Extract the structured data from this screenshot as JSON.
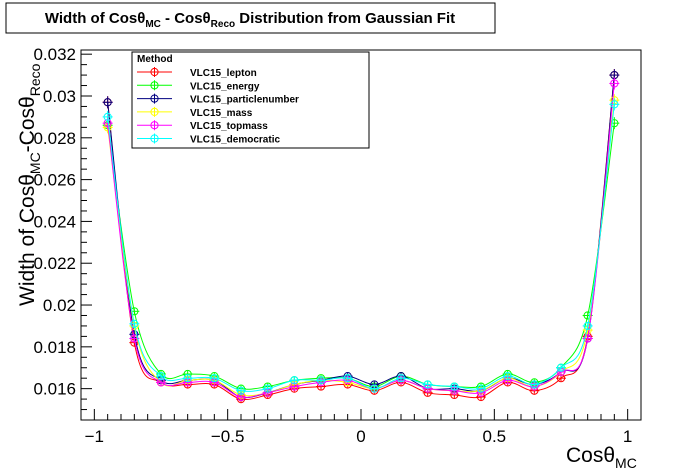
{
  "chart_data": {
    "type": "line",
    "title": {
      "p1": "Width of Cos",
      "p2": "θ",
      "p3": "MC",
      "p4": " - Cos",
      "p5": "θ",
      "p6": "Reco",
      "p7": " Distribution from Gaussian Fit"
    },
    "xlabel": {
      "main": "Cosθ",
      "sub": "MC"
    },
    "ylabel": {
      "p1": "Width of Cos",
      "p2": "θ",
      "p3": "MC",
      "p4": "-Cos",
      "p5": "θ",
      "p6": "Reco"
    },
    "xlim": [
      -1.05,
      1.05
    ],
    "ylim": [
      0.0145,
      0.0322
    ],
    "xticks": [
      -1,
      -0.5,
      0,
      0.5,
      1
    ],
    "xtick_labels": [
      "−1",
      "−0.5",
      "0",
      "0.5",
      "1"
    ],
    "yticks": [
      0.016,
      0.018,
      0.02,
      0.022,
      0.024,
      0.026,
      0.028,
      0.03,
      0.032
    ],
    "ytick_labels": [
      "0.016",
      "0.018",
      "0.02",
      "0.022",
      "0.024",
      "0.026",
      "0.028",
      "0.03",
      "0.032"
    ],
    "legend_title": "Method",
    "legend_placement": "top-left",
    "grid": false,
    "x": [
      -0.95,
      -0.85,
      -0.75,
      -0.65,
      -0.55,
      -0.45,
      -0.35,
      -0.25,
      -0.15,
      -0.05,
      0.05,
      0.15,
      0.25,
      0.35,
      0.45,
      0.55,
      0.65,
      0.75,
      0.85,
      0.95
    ],
    "series": [
      {
        "name": "VLC15_lepton",
        "color": "#ff0000",
        "values": [
          0.0297,
          0.0182,
          0.0163,
          0.0162,
          0.0162,
          0.0155,
          0.0157,
          0.016,
          0.0161,
          0.0162,
          0.0159,
          0.0163,
          0.0158,
          0.0157,
          0.0156,
          0.0163,
          0.0159,
          0.0165,
          0.0185,
          0.031
        ]
      },
      {
        "name": "VLC15_energy",
        "color": "#00ff00",
        "values": [
          0.0286,
          0.0197,
          0.0167,
          0.0167,
          0.0166,
          0.016,
          0.0161,
          0.0164,
          0.0165,
          0.0165,
          0.0161,
          0.0166,
          0.0162,
          0.0161,
          0.0161,
          0.0167,
          0.0163,
          0.017,
          0.0195,
          0.0287
        ]
      },
      {
        "name": "VLC15_particlenumber",
        "color": "#000080",
        "values": [
          0.0297,
          0.0186,
          0.0164,
          0.0164,
          0.0164,
          0.0156,
          0.0158,
          0.0162,
          0.0164,
          0.0166,
          0.0162,
          0.0166,
          0.016,
          0.016,
          0.0159,
          0.0165,
          0.0162,
          0.0168,
          0.0184,
          0.031
        ]
      },
      {
        "name": "VLC15_mass",
        "color": "#ffff00",
        "values": [
          0.0285,
          0.019,
          0.0163,
          0.0164,
          0.0164,
          0.0157,
          0.0158,
          0.0162,
          0.0164,
          0.0163,
          0.016,
          0.0164,
          0.016,
          0.0159,
          0.0159,
          0.0165,
          0.0161,
          0.0168,
          0.0188,
          0.0298
        ]
      },
      {
        "name": "VLC15_topmass",
        "color": "#ff00ff",
        "values": [
          0.0287,
          0.0184,
          0.0163,
          0.0163,
          0.0163,
          0.0156,
          0.0158,
          0.0161,
          0.0163,
          0.0164,
          0.016,
          0.0164,
          0.016,
          0.0159,
          0.0158,
          0.0164,
          0.0161,
          0.0168,
          0.0184,
          0.0306
        ]
      },
      {
        "name": "VLC15_democratic",
        "color": "#00ffff",
        "values": [
          0.029,
          0.0191,
          0.0166,
          0.0165,
          0.0165,
          0.0159,
          0.016,
          0.0164,
          0.0164,
          0.0165,
          0.016,
          0.0165,
          0.0162,
          0.0161,
          0.016,
          0.0166,
          0.0162,
          0.017,
          0.019,
          0.0296
        ]
      }
    ]
  }
}
